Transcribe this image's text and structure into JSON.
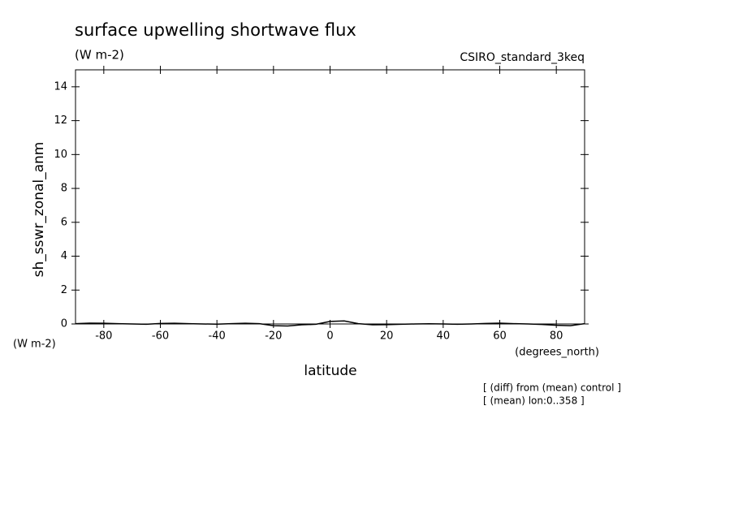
{
  "chart_data": {
    "type": "line",
    "title": "surface upwelling shortwave flux",
    "units": "(W m-2)",
    "model": "CSIRO_standard_3keq",
    "ylabel": "sh_sswr_zonal_anm",
    "y_units": "(W m-2)",
    "xlabel": "latitude",
    "x_units": "(degrees_north)",
    "notes": [
      "[ (diff) from (mean) control ]",
      "[ (mean) lon:0..358 ]"
    ],
    "x": [
      -90,
      -85,
      -80,
      -75,
      -70,
      -65,
      -60,
      -55,
      -50,
      -45,
      -40,
      -35,
      -30,
      -25,
      -20,
      -15,
      -10,
      -5,
      0,
      5,
      10,
      15,
      20,
      25,
      30,
      35,
      40,
      45,
      50,
      55,
      60,
      65,
      70,
      75,
      80,
      85,
      90
    ],
    "series": [
      {
        "name": "sh_sswr_zonal_anm",
        "color": "#000000",
        "values": [
          0.02,
          0.05,
          0.04,
          0.02,
          0.0,
          -0.02,
          0.03,
          0.04,
          0.02,
          0.0,
          -0.01,
          0.02,
          0.04,
          0.02,
          -0.1,
          -0.12,
          -0.05,
          -0.02,
          0.15,
          0.18,
          0.02,
          -0.05,
          -0.04,
          -0.02,
          0.0,
          0.01,
          0.0,
          -0.02,
          0.0,
          0.03,
          0.05,
          0.02,
          0.0,
          -0.03,
          -0.08,
          -0.1,
          0.02
        ]
      }
    ],
    "xlim": [
      -90,
      90
    ],
    "xticks": [
      -80,
      -60,
      -40,
      -20,
      0,
      20,
      40,
      60,
      80
    ],
    "ylim": [
      0,
      15
    ],
    "yticks": [
      0,
      2,
      4,
      6,
      8,
      10,
      12,
      14
    ]
  }
}
